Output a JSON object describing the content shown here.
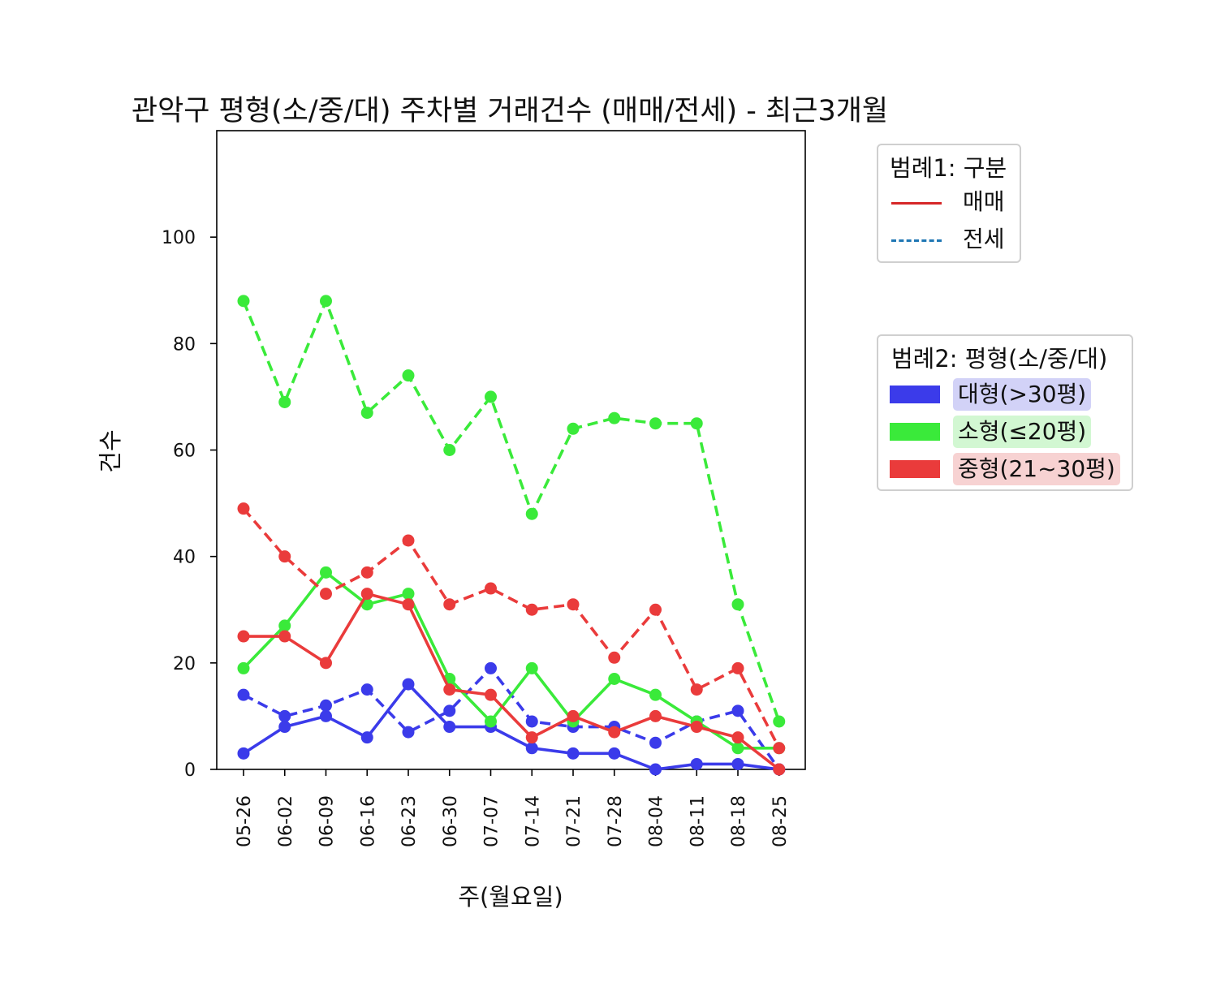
{
  "chart_data": {
    "type": "line",
    "title": "관악구 평형(소/중/대) 주차별 거래건수 (매매/전세) - 최근3개월",
    "xlabel": "주(월요일)",
    "ylabel": "건수",
    "ylim": [
      0,
      120
    ],
    "yticks": [
      0,
      20,
      40,
      60,
      80,
      100
    ],
    "grid": false,
    "categories": [
      "05-26",
      "06-02",
      "06-09",
      "06-16",
      "06-23",
      "06-30",
      "07-07",
      "07-14",
      "07-21",
      "07-28",
      "08-04",
      "08-11",
      "08-18",
      "08-25"
    ],
    "series": [
      {
        "name": "대형(>30평) 매매",
        "group": "대형(>30평)",
        "kind": "매매",
        "color": "#3b3bea",
        "dash": false,
        "values": [
          3,
          8,
          10,
          6,
          16,
          8,
          8,
          4,
          3,
          3,
          0,
          1,
          1,
          0
        ]
      },
      {
        "name": "대형(>30평) 전세",
        "group": "대형(>30평)",
        "kind": "전세",
        "color": "#3b3bea",
        "dash": true,
        "values": [
          14,
          10,
          12,
          15,
          7,
          11,
          19,
          9,
          8,
          8,
          5,
          9,
          11,
          0
        ]
      },
      {
        "name": "소형(≤20평) 매매",
        "group": "소형(≤20평)",
        "kind": "매매",
        "color": "#3aea3a",
        "dash": false,
        "values": [
          19,
          27,
          37,
          31,
          33,
          17,
          9,
          19,
          9,
          17,
          14,
          9,
          4,
          4
        ]
      },
      {
        "name": "소형(≤20평) 전세",
        "group": "소형(≤20평)",
        "kind": "전세",
        "color": "#3aea3a",
        "dash": true,
        "values": [
          88,
          69,
          88,
          67,
          74,
          60,
          70,
          48,
          64,
          66,
          65,
          65,
          31,
          9
        ]
      },
      {
        "name": "중형(21~30평) 매매",
        "group": "중형(21~30평)",
        "kind": "매매",
        "color": "#ea3b3b",
        "dash": false,
        "values": [
          25,
          25,
          20,
          33,
          31,
          15,
          14,
          6,
          10,
          7,
          10,
          8,
          6,
          0
        ]
      },
      {
        "name": "중형(21~30평) 전세",
        "group": "중형(21~30평)",
        "kind": "전세",
        "color": "#ea3b3b",
        "dash": true,
        "values": [
          49,
          40,
          33,
          37,
          43,
          31,
          34,
          30,
          31,
          21,
          30,
          15,
          19,
          4
        ]
      }
    ],
    "legend1": {
      "title": "범례1: 구분",
      "placement": "upper-right-outside",
      "items": [
        {
          "label": "매매",
          "color": "#d62728",
          "style": "solid"
        },
        {
          "label": "전세",
          "color": "#1f77b4",
          "style": "dashed"
        }
      ]
    },
    "legend2": {
      "title": "범례2: 평형(소/중/대)",
      "placement": "right-outside",
      "items": [
        {
          "label": "대형(>30평)",
          "color": "#3b3bea",
          "bg": "#d2d2f7"
        },
        {
          "label": "소형(≤20평)",
          "color": "#3aea3a",
          "bg": "#d2f7d2"
        },
        {
          "label": "중형(21~30평)",
          "color": "#ea3b3b",
          "bg": "#f7d2d2"
        }
      ]
    }
  }
}
